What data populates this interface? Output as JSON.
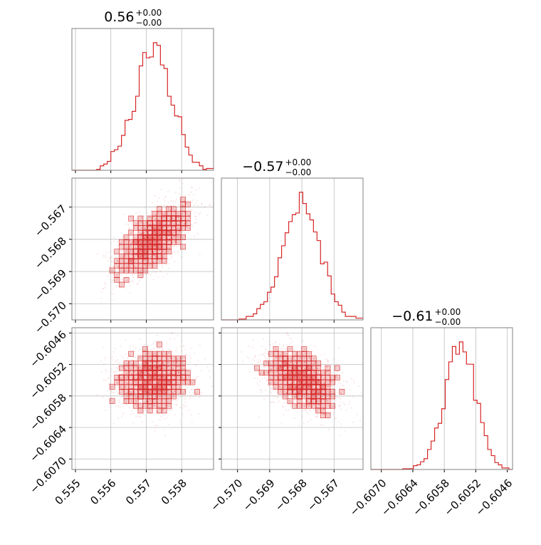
{
  "chart_data": {
    "type": "corner",
    "accent_color": "#d62728",
    "params": [
      {
        "title_value": "0.56",
        "title_upper": "+0.00",
        "title_lower": "−0.00",
        "range": [
          0.5549,
          0.5589
        ],
        "ticks": [
          0.555,
          0.556,
          0.557,
          0.558
        ],
        "tick_labels": [
          "0.555",
          "0.556",
          "0.557",
          "0.558"
        ],
        "mean": 0.5572,
        "std": 0.00055
      },
      {
        "title_value": "−0.57",
        "title_upper": "+0.00",
        "title_lower": "−0.00",
        "range": [
          -0.5705,
          -0.5661
        ],
        "ticks": [
          -0.57,
          -0.569,
          -0.568,
          -0.567
        ],
        "tick_labels": [
          "−0.570",
          "−0.569",
          "−0.568",
          "−0.567"
        ],
        "mean": -0.568,
        "std": 0.0006
      },
      {
        "title_value": "−0.61",
        "title_upper": "+0.00",
        "title_lower": "−0.00",
        "range": [
          -0.6072,
          -0.6045
        ],
        "ticks": [
          -0.607,
          -0.6064,
          -0.6058,
          -0.6052,
          -0.6046
        ],
        "tick_labels": [
          "−0.6070",
          "−0.6064",
          "−0.6058",
          "−0.6052",
          "−0.6046"
        ],
        "mean": -0.6055,
        "std": 0.0003
      }
    ],
    "correlations": {
      "p1_p0": 0.65,
      "p2_p0": 0.05,
      "p2_p1": -0.45
    },
    "grid": true
  }
}
